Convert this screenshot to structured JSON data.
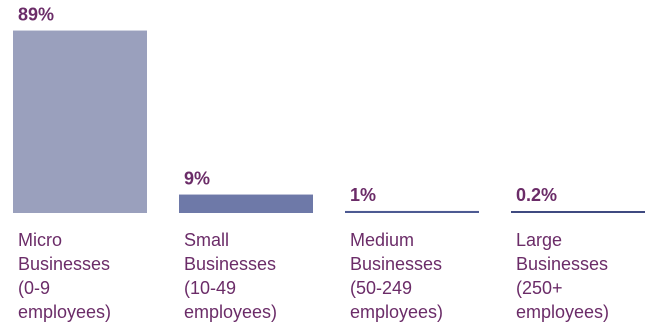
{
  "chart_data": {
    "type": "bar",
    "categories": [
      "Micro\nBusinesses\n(0-9\nemployees)",
      "Small\nBusinesses\n(10-49\nemployees)",
      "Medium\nBusinesses\n(50-249\nemployees)",
      "Large\nBusinesses\n(250+\nemployees)"
    ],
    "values": [
      89,
      9,
      1,
      0.2
    ],
    "value_labels": [
      "89%",
      "9%",
      "1%",
      "0.2%"
    ],
    "unit": "%",
    "ylim": [
      0,
      100
    ],
    "title": "",
    "xlabel": "",
    "ylabel": "",
    "grid": false,
    "bar_colors": [
      "#9AA0BD",
      "#6E79A8",
      "#4D5A92",
      "#3F4A80"
    ],
    "label_color": "#6B2C68",
    "category_label_color": "#6B2C68"
  }
}
